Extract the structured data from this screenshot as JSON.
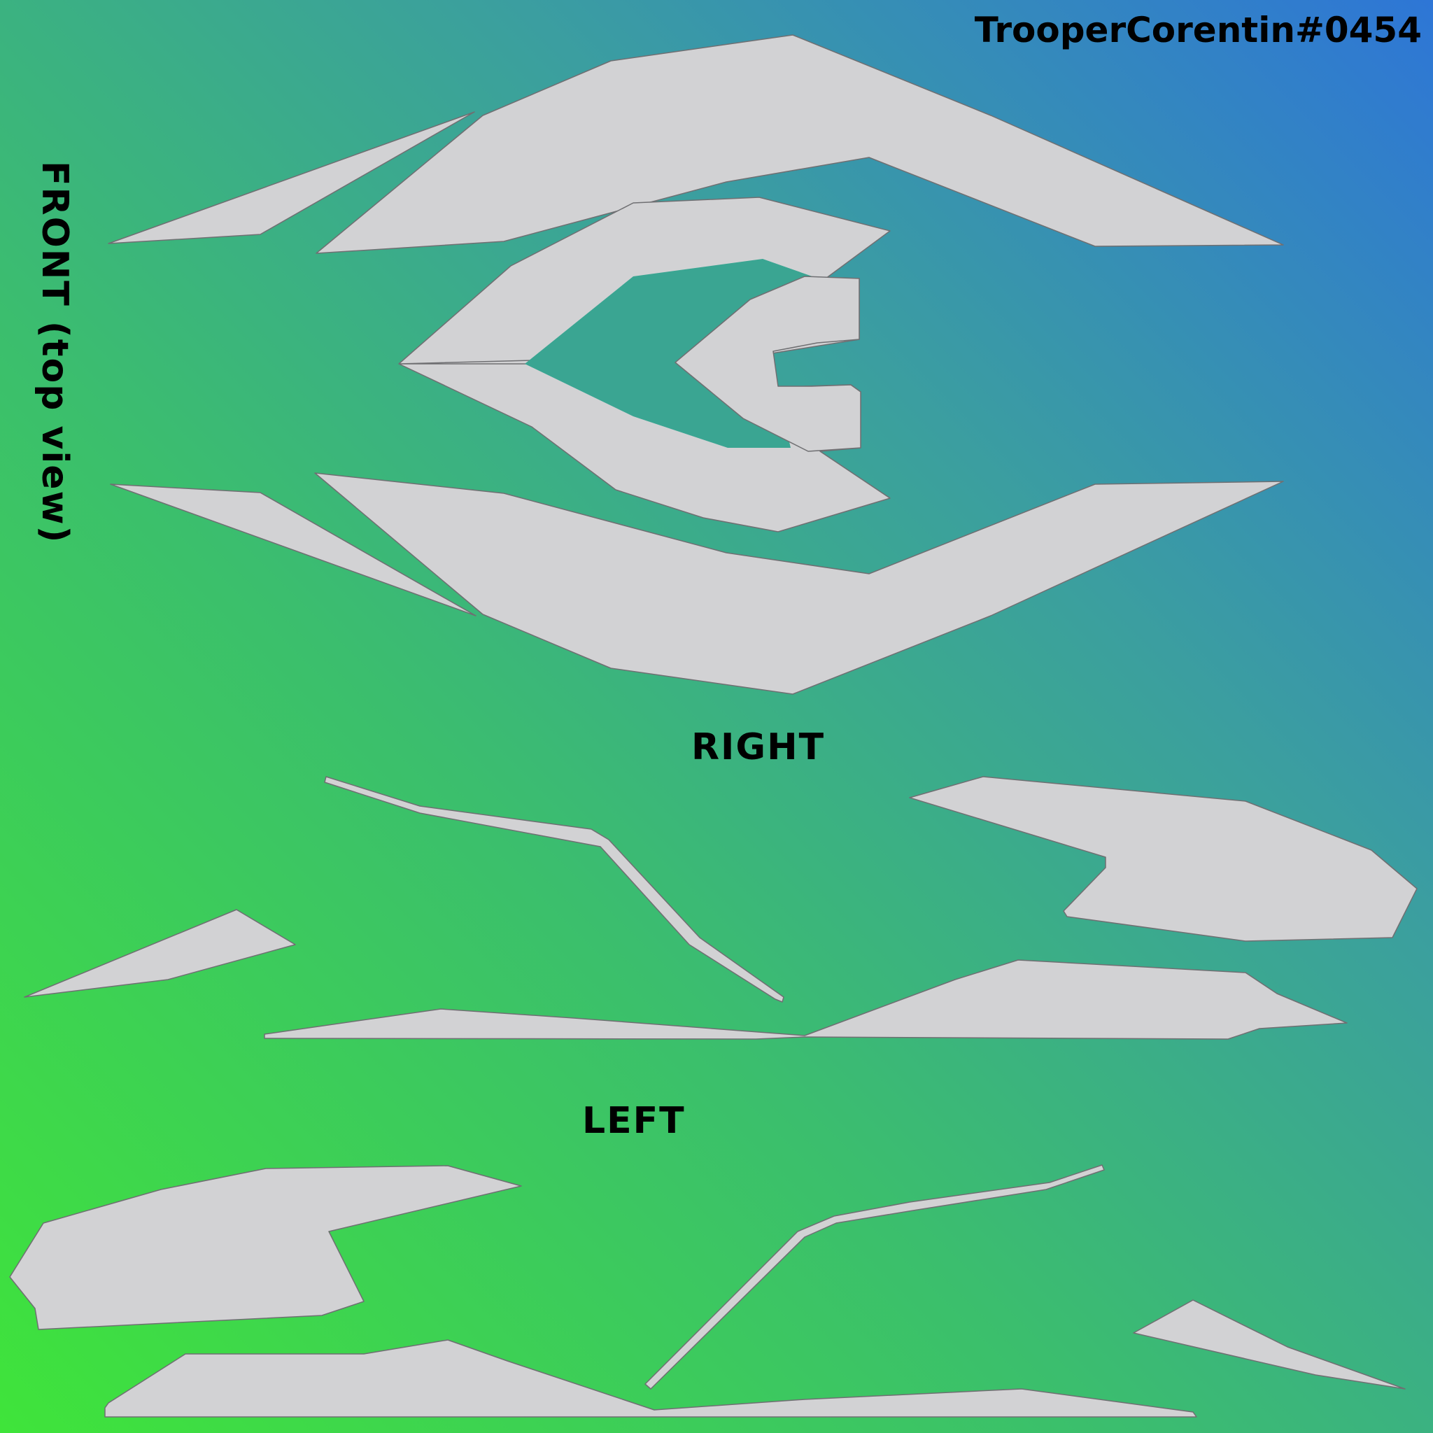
{
  "watermark": "TrooperCorentin#0454",
  "labels": {
    "front": "FRONT (top view)",
    "right": "RIGHT",
    "left": "LEFT"
  },
  "colors": {
    "gradient_top_right": "#2e76d6",
    "gradient_bottom_left": "#3fe43a",
    "mesh_fill": "#d2d2d4",
    "mesh_wire": "#6f6f72",
    "text": "#000000"
  }
}
